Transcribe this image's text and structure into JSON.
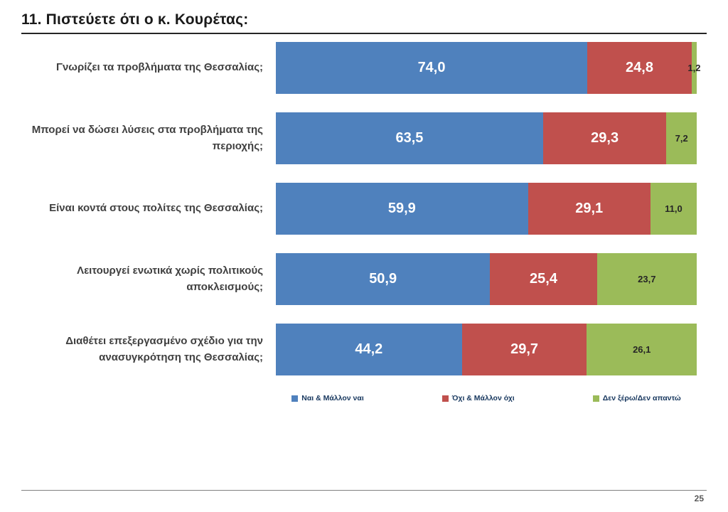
{
  "page": {
    "title": "11. Πιστεύετε ότι ο κ. Κουρέτας:",
    "page_number": "25"
  },
  "chart_data": {
    "type": "bar",
    "orientation": "horizontal",
    "stacked": true,
    "unit": "percent",
    "xlim": [
      0,
      100
    ],
    "grid": false,
    "legend_position": "bottom",
    "value_labels": true,
    "decimal_separator": ",",
    "categories": [
      "Γνωρίζει τα προβλήματα της Θεσσαλίας;",
      "Μπορεί να δώσει λύσεις στα προβλήματα της περιοχής;",
      "Είναι κοντά στους πολίτες της Θεσσαλίας;",
      "Λειτουργεί ενωτικά χωρίς πολιτικούς αποκλεισμούς;",
      "Διαθέτει επεξεργασμένο σχέδιο για την ανασυγκρότηση της Θεσσαλίας;"
    ],
    "series": [
      {
        "name": "Ναι & Μάλλον ναι",
        "color": "#4F81BD",
        "values": [
          74.0,
          63.5,
          59.9,
          50.9,
          44.2
        ]
      },
      {
        "name": "Όχι & Μάλλον όχι",
        "color": "#C0504D",
        "values": [
          24.8,
          29.3,
          29.1,
          25.4,
          29.7
        ]
      },
      {
        "name": "Δεν ξέρω/Δεν απαντώ",
        "color": "#9BBB59",
        "values": [
          1.2,
          7.2,
          11.0,
          23.7,
          26.1
        ]
      }
    ]
  }
}
